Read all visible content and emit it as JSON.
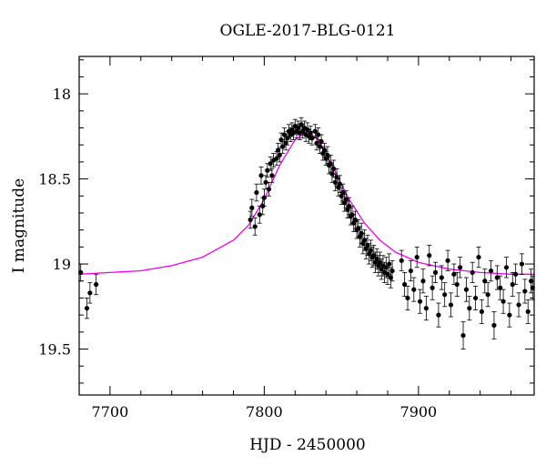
{
  "chart_data": {
    "type": "scatter",
    "title": "OGLE-2017-BLG-0121",
    "xlabel": "HJD - 2450000",
    "ylabel": "I magnitude",
    "xlim": [
      7680,
      7975
    ],
    "ylim": [
      19.77,
      17.78
    ],
    "y_inverted": true,
    "x_ticks": [
      7700,
      7800,
      7900
    ],
    "y_ticks": [
      18,
      18.5,
      19,
      19.5
    ],
    "y_tick_labels": [
      "18",
      "18.5",
      "19",
      "19.5"
    ],
    "grid": false,
    "legend": "none",
    "colors": {
      "data": "#000000",
      "model": "#ee00ee",
      "frame": "#000000"
    },
    "model_curve": {
      "name": "",
      "t0": 7828,
      "peak_mag": 18.22,
      "baseline_mag": 19.06,
      "x": [
        7680,
        7700,
        7720,
        7740,
        7760,
        7780,
        7790,
        7800,
        7810,
        7820,
        7828,
        7835,
        7845,
        7855,
        7865,
        7875,
        7885,
        7900,
        7920,
        7940,
        7960,
        7975
      ],
      "y": [
        19.06,
        19.05,
        19.04,
        19.01,
        18.96,
        18.86,
        18.77,
        18.62,
        18.42,
        18.27,
        18.22,
        18.27,
        18.44,
        18.62,
        18.76,
        18.86,
        18.93,
        18.99,
        19.03,
        19.05,
        19.06,
        19.06
      ]
    },
    "series": [
      {
        "name": "",
        "x": [
          7681,
          7685,
          7687,
          7691,
          7791,
          7792,
          7794,
          7795,
          7797,
          7798,
          7799,
          7800,
          7801,
          7802,
          7803,
          7804,
          7805,
          7806,
          7808,
          7809,
          7810,
          7811,
          7812,
          7813,
          7814,
          7815,
          7816,
          7817,
          7818,
          7819,
          7820,
          7821,
          7822,
          7823,
          7824,
          7825,
          7826,
          7827,
          7828,
          7829,
          7830,
          7831,
          7833,
          7834,
          7835,
          7836,
          7837,
          7838,
          7839,
          7840,
          7841,
          7842,
          7843,
          7844,
          7845,
          7846,
          7847,
          7848,
          7849,
          7850,
          7851,
          7852,
          7853,
          7854,
          7855,
          7856,
          7857,
          7858,
          7859,
          7860,
          7861,
          7862,
          7863,
          7864,
          7865,
          7866,
          7867,
          7868,
          7869,
          7870,
          7871,
          7872,
          7873,
          7874,
          7875,
          7876,
          7877,
          7878,
          7879,
          7880,
          7881,
          7882,
          7883,
          7889,
          7891,
          7893,
          7895,
          7897,
          7899,
          7901,
          7903,
          7905,
          7907,
          7909,
          7911,
          7913,
          7915,
          7917,
          7919,
          7921,
          7923,
          7925,
          7927,
          7929,
          7931,
          7933,
          7935,
          7937,
          7939,
          7941,
          7943,
          7945,
          7947,
          7949,
          7951,
          7953,
          7955,
          7957,
          7959,
          7961,
          7963,
          7965,
          7967,
          7969,
          7971,
          7973,
          7974
        ],
        "y": [
          19.05,
          19.26,
          19.17,
          19.12,
          18.74,
          18.67,
          18.78,
          18.58,
          18.71,
          18.48,
          18.66,
          18.61,
          18.52,
          18.45,
          18.56,
          18.41,
          18.48,
          18.39,
          18.38,
          18.33,
          18.36,
          18.27,
          18.31,
          18.24,
          18.29,
          18.26,
          18.22,
          18.24,
          18.21,
          18.23,
          18.19,
          18.22,
          18.2,
          18.23,
          18.18,
          18.22,
          18.2,
          18.24,
          18.21,
          18.25,
          18.23,
          18.26,
          18.22,
          18.29,
          18.24,
          18.31,
          18.28,
          18.35,
          18.33,
          18.38,
          18.36,
          18.42,
          18.41,
          18.47,
          18.44,
          18.52,
          18.49,
          18.55,
          18.53,
          18.6,
          18.58,
          18.64,
          18.62,
          18.68,
          18.66,
          18.72,
          18.71,
          18.76,
          18.74,
          18.8,
          18.79,
          18.84,
          18.82,
          18.88,
          18.86,
          18.91,
          18.89,
          18.94,
          18.92,
          18.96,
          18.95,
          18.99,
          18.97,
          19.01,
          18.99,
          19.03,
          19.01,
          19.05,
          19.02,
          19.06,
          19.0,
          19.08,
          19.04,
          18.98,
          19.12,
          19.2,
          19.04,
          19.15,
          18.96,
          19.22,
          19.1,
          19.26,
          18.95,
          19.14,
          19.05,
          19.3,
          19.08,
          19.18,
          18.98,
          19.24,
          19.06,
          19.12,
          19.02,
          19.42,
          19.15,
          19.26,
          19.05,
          19.2,
          18.96,
          19.28,
          19.1,
          19.18,
          19.04,
          19.36,
          19.08,
          19.14,
          19.22,
          19.02,
          19.3,
          19.12,
          19.06,
          19.24,
          19.0,
          19.16,
          19.28,
          19.1,
          19.14
        ],
        "err": [
          0.05,
          0.06,
          0.06,
          0.06,
          0.05,
          0.05,
          0.05,
          0.05,
          0.05,
          0.05,
          0.05,
          0.05,
          0.04,
          0.04,
          0.04,
          0.04,
          0.04,
          0.04,
          0.04,
          0.04,
          0.04,
          0.04,
          0.04,
          0.04,
          0.04,
          0.04,
          0.04,
          0.04,
          0.04,
          0.04,
          0.04,
          0.04,
          0.04,
          0.04,
          0.04,
          0.04,
          0.04,
          0.04,
          0.04,
          0.04,
          0.04,
          0.04,
          0.04,
          0.04,
          0.04,
          0.04,
          0.04,
          0.04,
          0.04,
          0.04,
          0.05,
          0.05,
          0.05,
          0.05,
          0.05,
          0.05,
          0.05,
          0.05,
          0.05,
          0.05,
          0.05,
          0.05,
          0.05,
          0.05,
          0.05,
          0.05,
          0.05,
          0.05,
          0.05,
          0.05,
          0.05,
          0.06,
          0.06,
          0.06,
          0.06,
          0.06,
          0.06,
          0.06,
          0.06,
          0.06,
          0.06,
          0.06,
          0.06,
          0.06,
          0.06,
          0.06,
          0.06,
          0.06,
          0.06,
          0.06,
          0.06,
          0.06,
          0.06,
          0.06,
          0.07,
          0.07,
          0.06,
          0.07,
          0.06,
          0.07,
          0.07,
          0.07,
          0.06,
          0.07,
          0.06,
          0.07,
          0.07,
          0.07,
          0.06,
          0.07,
          0.06,
          0.07,
          0.06,
          0.08,
          0.07,
          0.07,
          0.06,
          0.07,
          0.06,
          0.07,
          0.07,
          0.07,
          0.06,
          0.08,
          0.07,
          0.07,
          0.07,
          0.06,
          0.07,
          0.07,
          0.06,
          0.07,
          0.06,
          0.07,
          0.07,
          0.07,
          0.07
        ]
      }
    ]
  }
}
